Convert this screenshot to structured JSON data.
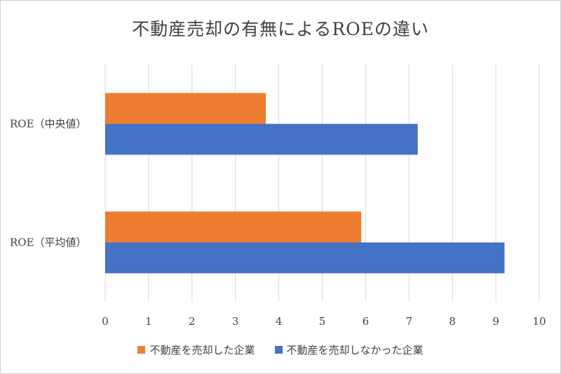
{
  "chart_data": {
    "type": "bar",
    "orientation": "horizontal",
    "title": "不動産売却の有無によるROEの違い",
    "categories": [
      "ROE（中央値）",
      "ROE（平均値）"
    ],
    "series": [
      {
        "name": "不動産を売却した企業",
        "color": "#ED7D31",
        "values": [
          3.7,
          5.9
        ]
      },
      {
        "name": "不動産を売却しなかった企業",
        "color": "#4472C4",
        "values": [
          7.2,
          9.2
        ]
      }
    ],
    "xlim": [
      0,
      10
    ],
    "xticks": [
      "0",
      "1",
      "2",
      "3",
      "4",
      "5",
      "6",
      "7",
      "8",
      "9",
      "10"
    ],
    "grid": true,
    "legend_position": "bottom"
  }
}
